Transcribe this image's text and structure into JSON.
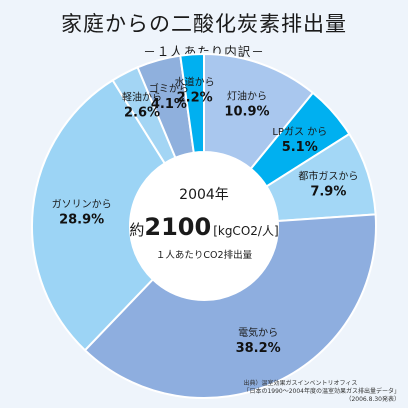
{
  "title": "家庭からの二酸化炭素排出量",
  "subtitle": "－１人あたり内訳－",
  "center": {
    "year": "2004年",
    "prefix": "約",
    "value": "2100",
    "unit": "[kgCO2/人]",
    "note": "１人あたりCO2排出量"
  },
  "source": {
    "line1": "出典）温室効果ガスインベントリオフィス",
    "line2": "「日本の1990～2004年度の温室効果ガス排出量データ」",
    "line3": "（2006.8.30発表）"
  },
  "chart_data": {
    "type": "pie",
    "donut": true,
    "start": "top, clockwise",
    "slices": [
      {
        "label": "灯油から",
        "value": 10.9,
        "text": "10.9%",
        "color": "#a9c7ee"
      },
      {
        "label": "LPガス から",
        "value": 5.1,
        "text": "5.1%",
        "color": "#00b0f0"
      },
      {
        "label": "都市ガスから",
        "value": 7.9,
        "text": "7.9%",
        "color": "#a3d7f6"
      },
      {
        "label": "電気から",
        "value": 38.2,
        "text": "38.2%",
        "color": "#8eaedf"
      },
      {
        "label": "ガソリンから",
        "value": 28.9,
        "text": "28.9%",
        "color": "#9cd4f5"
      },
      {
        "label": "軽油から",
        "value": 2.6,
        "text": "2.6%",
        "color": "#a3d5f4"
      },
      {
        "label": "ゴミから",
        "value": 4.1,
        "text": "4.1%",
        "color": "#8fb0dd"
      },
      {
        "label": "水道から",
        "value": 2.2,
        "text": "2.2%",
        "color": "#00b0f0"
      }
    ]
  }
}
